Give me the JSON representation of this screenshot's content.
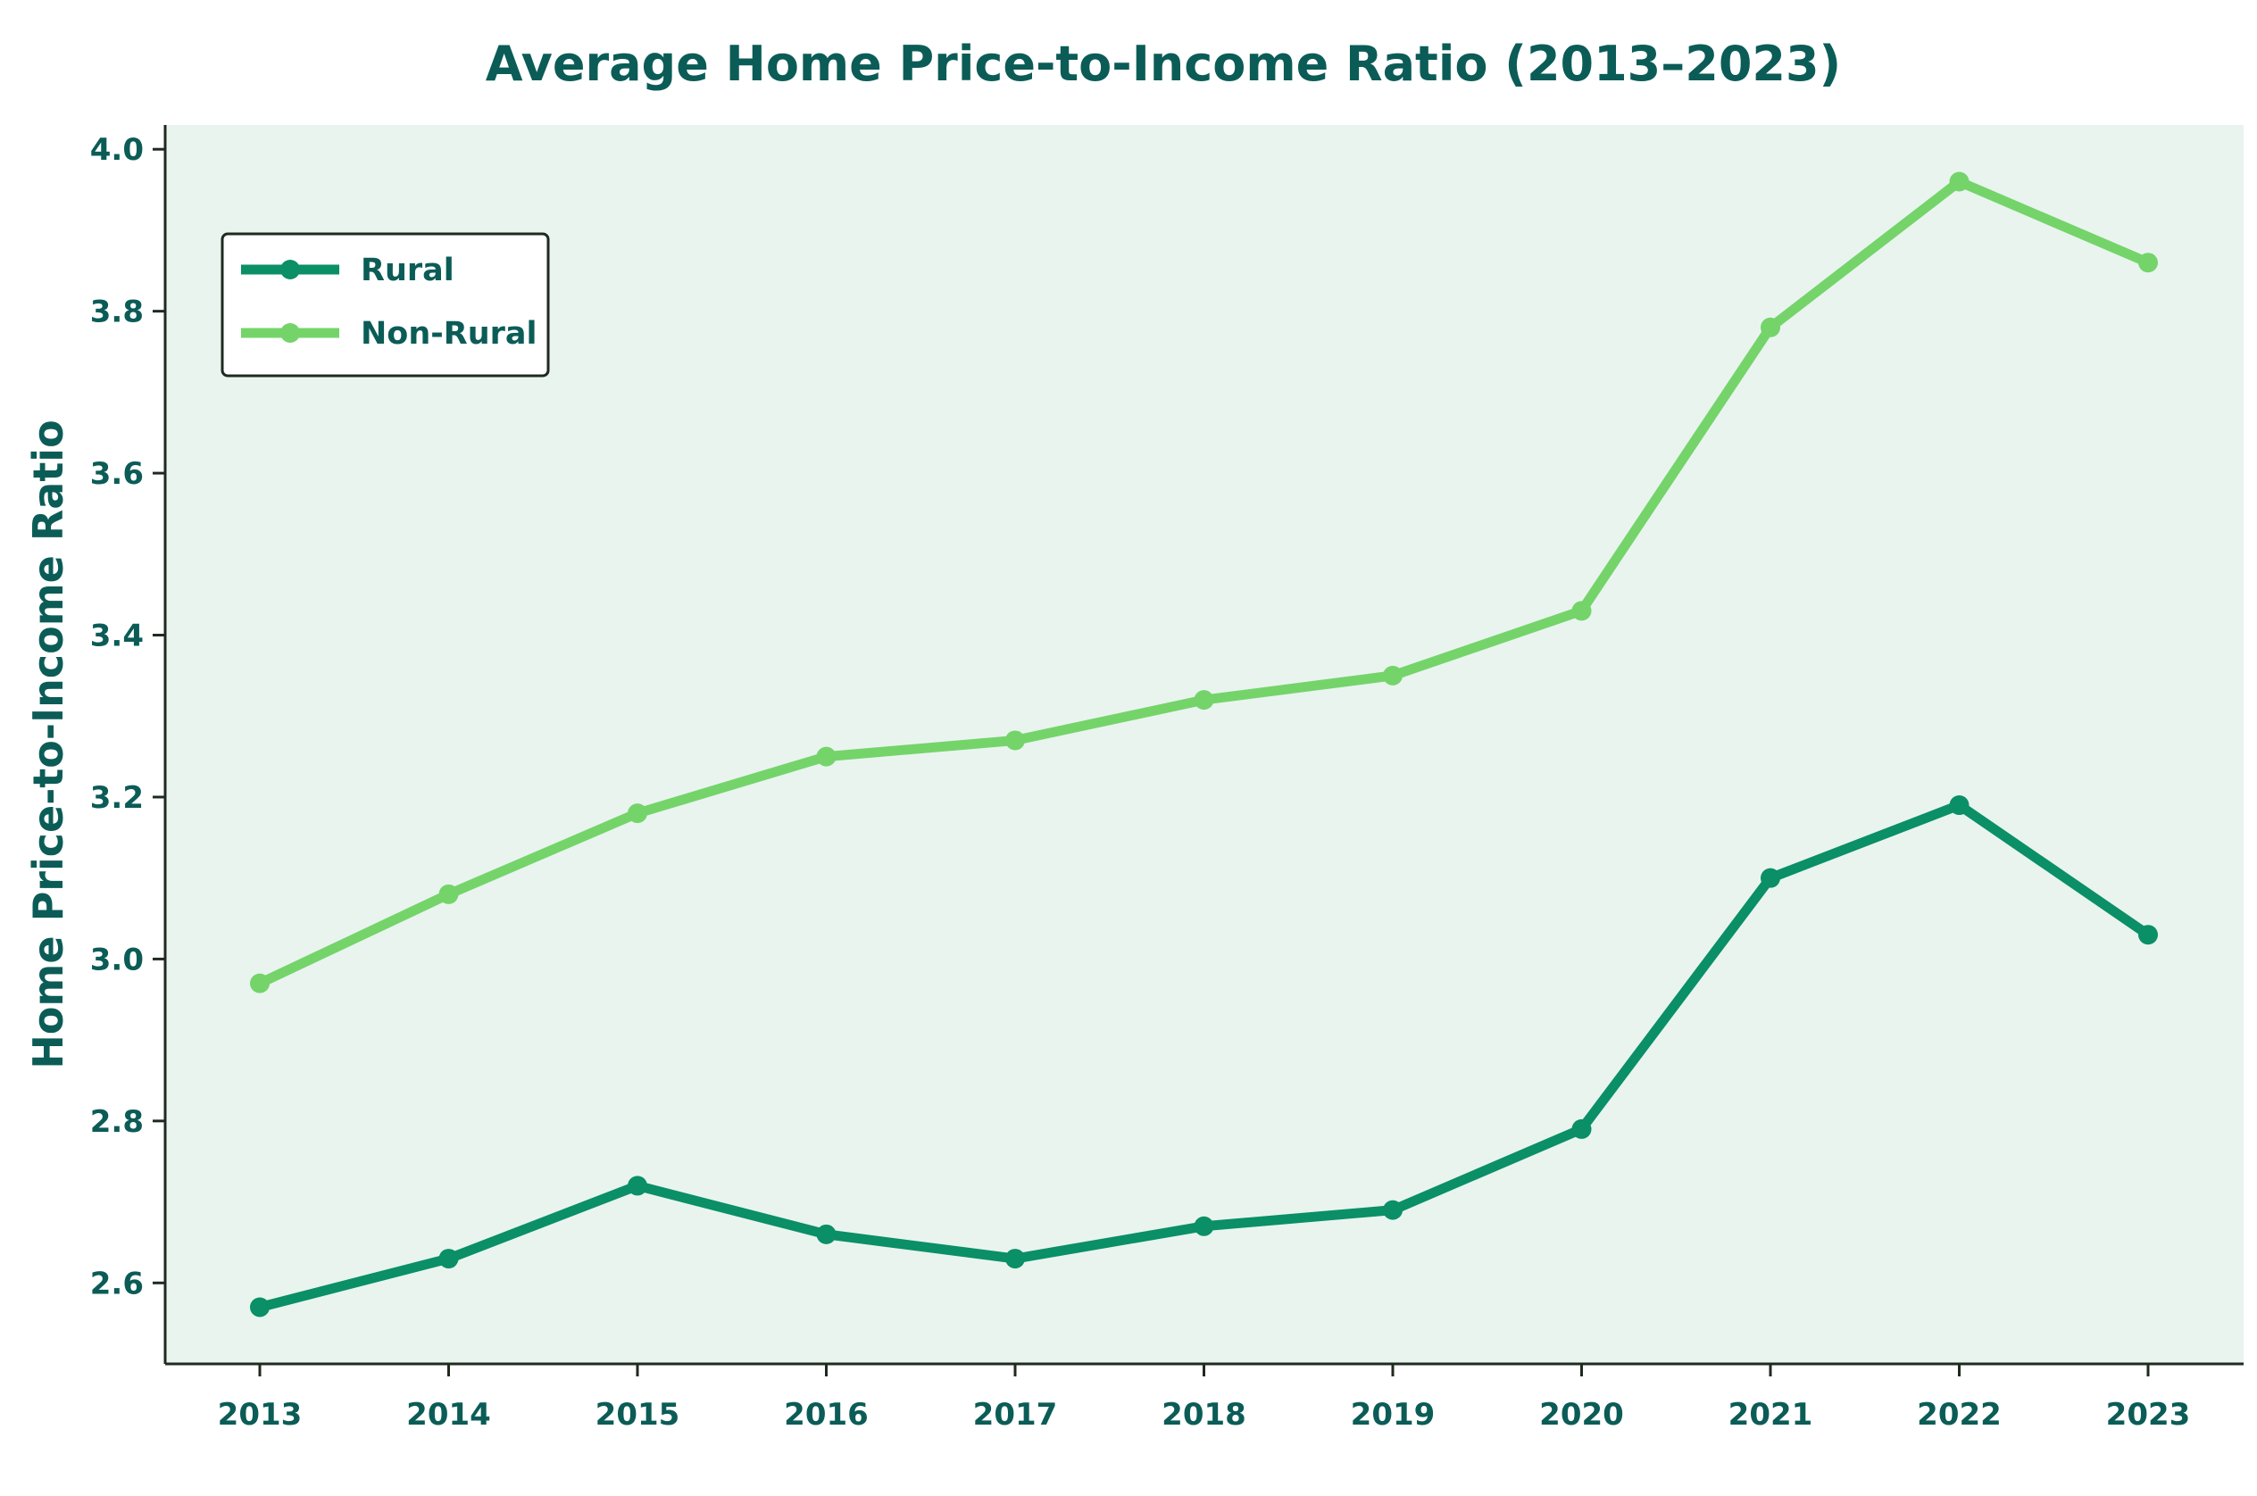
{
  "chart_data": {
    "type": "line",
    "title": "Average Home Price-to-Income Ratio (2013–2023)",
    "xlabel": "",
    "ylabel": "Home Price-to-Income Ratio",
    "x": [
      "2013",
      "2014",
      "2015",
      "2016",
      "2017",
      "2018",
      "2019",
      "2020",
      "2021",
      "2022",
      "2023"
    ],
    "series": [
      {
        "name": "Rural",
        "color": "#0a8f66",
        "values": [
          2.57,
          2.63,
          2.72,
          2.66,
          2.63,
          2.67,
          2.69,
          2.79,
          3.1,
          3.19,
          3.03
        ]
      },
      {
        "name": "Non-Rural",
        "color": "#74d46a",
        "values": [
          2.97,
          3.08,
          3.18,
          3.25,
          3.27,
          3.32,
          3.35,
          3.43,
          3.78,
          3.96,
          3.86
        ]
      }
    ],
    "ylim": [
      2.5,
      4.03
    ],
    "yticks": [
      "2.6",
      "2.8",
      "3.0",
      "3.2",
      "3.4",
      "3.6",
      "3.8",
      "4.0"
    ],
    "legend_position": "top-left",
    "grid": false,
    "colors": {
      "text": "#0b5c57",
      "plot_background": "#e9f4ef",
      "axis": "#1f2a1f"
    }
  }
}
